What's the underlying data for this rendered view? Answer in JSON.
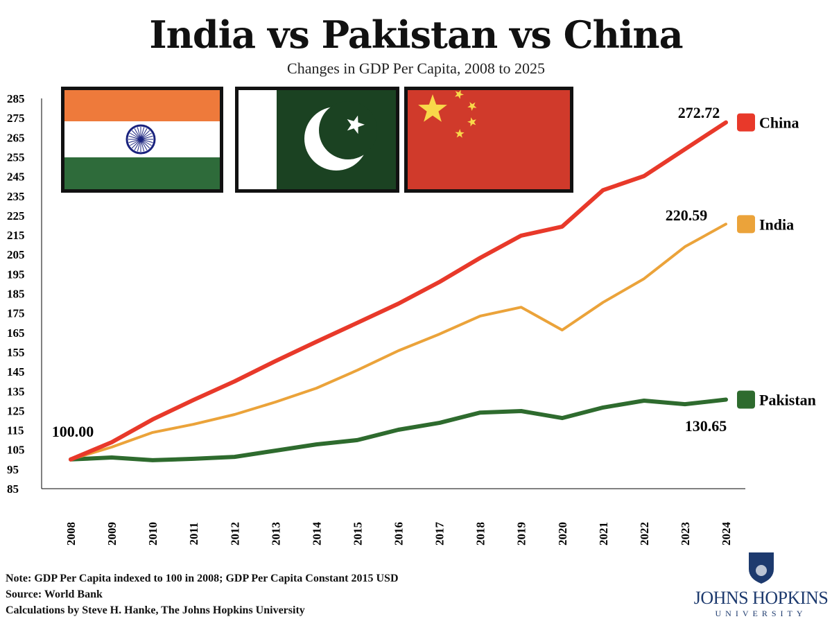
{
  "title": "India vs Pakistan vs China",
  "subtitle": "Changes in GDP Per Capita, 2008 to 2025",
  "chart_data": {
    "type": "line",
    "x": [
      2008,
      2009,
      2010,
      2011,
      2012,
      2013,
      2014,
      2015,
      2016,
      2017,
      2018,
      2019,
      2020,
      2021,
      2022,
      2023,
      2024
    ],
    "x_tick_labels": [
      "2008",
      "2009",
      "2010",
      "2011",
      "2012",
      "2013",
      "2014",
      "2015",
      "2016",
      "2017",
      "2018",
      "2019",
      "2020",
      "2021",
      "2022",
      "2023",
      "2024"
    ],
    "ylim": [
      85,
      285
    ],
    "y_ticks": [
      85,
      95,
      105,
      115,
      125,
      135,
      145,
      155,
      165,
      175,
      185,
      195,
      205,
      215,
      225,
      235,
      245,
      255,
      265,
      275,
      285
    ],
    "grid": false,
    "legend_placement": "right, at line ends",
    "series": [
      {
        "name": "China",
        "color": "#e8392a",
        "values": [
          100,
          108.8,
          120.5,
          130.5,
          140,
          150.4,
          160.3,
          170,
          179.8,
          190.9,
          203.3,
          214.7,
          219.3,
          238,
          245.2,
          259,
          272.72
        ],
        "end_label": "272.72"
      },
      {
        "name": "India",
        "color": "#eba33a",
        "values": [
          100,
          106.3,
          113.8,
          118,
          123,
          129.4,
          136.5,
          145.7,
          155.7,
          164.2,
          173.5,
          178,
          166.3,
          180.5,
          192.6,
          209,
          220.59
        ],
        "end_label": "220.59"
      },
      {
        "name": "Pakistan",
        "color": "#2e6b2e",
        "values": [
          100,
          101,
          99.6,
          100.3,
          101.3,
          104.5,
          107.7,
          109.9,
          115.2,
          118.7,
          124,
          124.8,
          121.2,
          126.6,
          130.1,
          128.3,
          130.65
        ],
        "end_label": "130.65"
      }
    ],
    "start_label": "100.00"
  },
  "footer": {
    "note": "Note: GDP Per Capita indexed to 100 in 2008; GDP Per Capita Constant 2015 USD",
    "source": "Source: World Bank",
    "credit": "Calculations by Steve H. Hanke, The Johns Hopkins University"
  },
  "logo": {
    "name": "JOHNS HOPKINS",
    "sub": "UNIVERSITY"
  },
  "flags": [
    "india-flag",
    "pakistan-flag",
    "china-flag"
  ]
}
